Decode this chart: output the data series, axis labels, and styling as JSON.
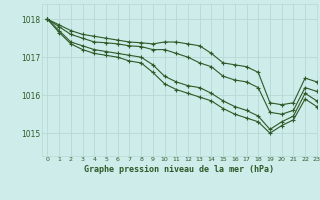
{
  "background_color": "#cdecea",
  "grid_color": "#b8d8d5",
  "line_color": "#2d5a27",
  "title": "Graphe pression niveau de la mer (hPa)",
  "xlim": [
    -0.5,
    23
  ],
  "ylim": [
    1014.4,
    1018.4
  ],
  "yticks": [
    1015,
    1016,
    1017,
    1018
  ],
  "xticks": [
    0,
    1,
    2,
    3,
    4,
    5,
    6,
    7,
    8,
    9,
    10,
    11,
    12,
    13,
    14,
    15,
    16,
    17,
    18,
    19,
    20,
    21,
    22,
    23
  ],
  "series": [
    [
      1018.0,
      1017.85,
      1017.7,
      1017.6,
      1017.55,
      1017.5,
      1017.45,
      1017.4,
      1017.38,
      1017.35,
      1017.4,
      1017.4,
      1017.35,
      1017.3,
      1017.1,
      1016.85,
      1016.8,
      1016.75,
      1016.6,
      1015.8,
      1015.75,
      1015.8,
      1016.45,
      1016.35
    ],
    [
      1018.0,
      1017.8,
      1017.6,
      1017.5,
      1017.4,
      1017.38,
      1017.35,
      1017.3,
      1017.28,
      1017.2,
      1017.2,
      1017.1,
      1017.0,
      1016.85,
      1016.75,
      1016.5,
      1016.4,
      1016.35,
      1016.2,
      1015.55,
      1015.5,
      1015.6,
      1016.2,
      1016.1
    ],
    [
      1018.0,
      1017.7,
      1017.4,
      1017.3,
      1017.2,
      1017.15,
      1017.1,
      1017.05,
      1017.0,
      1016.8,
      1016.5,
      1016.35,
      1016.25,
      1016.2,
      1016.05,
      1015.85,
      1015.7,
      1015.6,
      1015.45,
      1015.1,
      1015.3,
      1015.45,
      1016.05,
      1015.85
    ],
    [
      1018.0,
      1017.65,
      1017.35,
      1017.2,
      1017.1,
      1017.05,
      1017.0,
      1016.9,
      1016.85,
      1016.6,
      1016.3,
      1016.15,
      1016.05,
      1015.95,
      1015.85,
      1015.65,
      1015.5,
      1015.4,
      1015.3,
      1015.0,
      1015.2,
      1015.35,
      1015.9,
      1015.7
    ]
  ]
}
